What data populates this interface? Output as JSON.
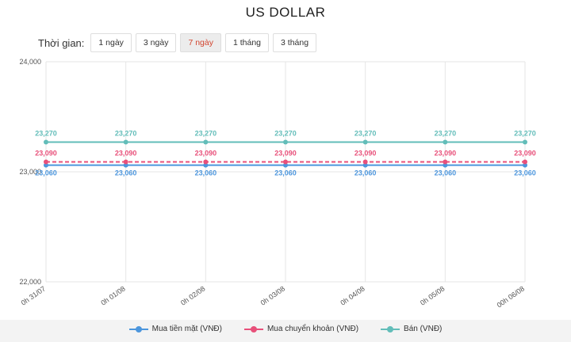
{
  "page": {
    "title": "US DOLLAR",
    "time_label": "Thời gian:",
    "ranges": [
      {
        "label": "1 ngày",
        "active": false
      },
      {
        "label": "3 ngày",
        "active": false
      },
      {
        "label": "7 ngày",
        "active": true
      },
      {
        "label": "1 tháng",
        "active": false
      },
      {
        "label": "3 tháng",
        "active": false
      }
    ]
  },
  "colors": {
    "blue": "#4c96dd",
    "red": "#e8507a",
    "teal": "#62bdb9",
    "active_range_text": "#d2452f"
  },
  "chart_data": {
    "type": "line",
    "title": "US DOLLAR",
    "xlabel": "",
    "ylabel": "",
    "categories": [
      "0h 31/07",
      "0h 01/08",
      "0h 02/08",
      "0h 03/08",
      "0h 04/08",
      "0h 05/08",
      "00h 06/08"
    ],
    "ylim": [
      22000,
      24000
    ],
    "yticks": [
      "22,000",
      "23,000",
      "24,000"
    ],
    "grid": true,
    "legend_position": "bottom",
    "series": [
      {
        "name": "Mua tiền mặt (VNĐ)",
        "color": "#4c96dd",
        "dashed": false,
        "values": [
          23060,
          23060,
          23060,
          23060,
          23060,
          23060,
          23060
        ],
        "labels": [
          "23,060",
          "23,060",
          "23,060",
          "23,060",
          "23,060",
          "23,060",
          "23,060"
        ]
      },
      {
        "name": "Mua chuyển khoản (VNĐ)",
        "color": "#e8507a",
        "dashed": true,
        "values": [
          23090,
          23090,
          23090,
          23090,
          23090,
          23090,
          23090
        ],
        "labels": [
          "23,090",
          "23,090",
          "23,090",
          "23,090",
          "23,090",
          "23,090",
          "23,090"
        ]
      },
      {
        "name": "Bán (VNĐ)",
        "color": "#62bdb9",
        "dashed": false,
        "values": [
          23270,
          23270,
          23270,
          23270,
          23270,
          23270,
          23270
        ],
        "labels": [
          "23,270",
          "23,270",
          "23,270",
          "23,270",
          "23,270",
          "23,270",
          "23,270"
        ]
      }
    ]
  }
}
